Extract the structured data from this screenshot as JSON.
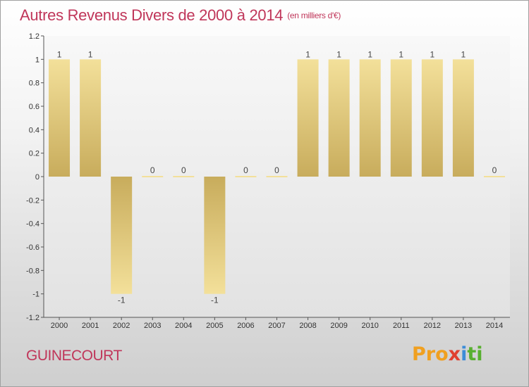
{
  "header": {
    "title": "Autres Revenus Divers de 2000 à 2014",
    "unit": "(en milliers d'€)"
  },
  "footer": {
    "commune": "GUINECOURT",
    "logo_parts": [
      "Pro",
      "x",
      "i",
      "ti"
    ]
  },
  "colors": {
    "title": "#c0365a",
    "bar_light": "#f3e09a",
    "bar_dark": "#c8ac5c",
    "logo_orange": "#f0a020",
    "logo_blue": "#3c8cd8",
    "logo_red": "#e04030",
    "logo_green": "#58b030"
  },
  "chart_data": {
    "type": "bar",
    "categories": [
      "2000",
      "2001",
      "2002",
      "2003",
      "2004",
      "2005",
      "2006",
      "2007",
      "2008",
      "2009",
      "2010",
      "2011",
      "2012",
      "2013",
      "2014"
    ],
    "values": [
      1,
      1,
      -1,
      0,
      0,
      -1,
      0,
      0,
      1,
      1,
      1,
      1,
      1,
      1,
      0
    ],
    "labels": [
      "1",
      "1",
      "-1",
      "0",
      "0",
      "-1",
      "0",
      "0",
      "1",
      "1",
      "1",
      "1",
      "1",
      "1",
      "0"
    ],
    "ylim": [
      -1.2,
      1.2
    ],
    "yticks": [
      1.2,
      1,
      0.8,
      0.6,
      0.4,
      0.2,
      0,
      -0.2,
      -0.4,
      -0.6,
      -0.8,
      -1,
      -1.2
    ],
    "ytick_labels": [
      "1.2",
      "1",
      "0.8",
      "0.6",
      "0.4",
      "0.2",
      "0",
      "-0.2",
      "-0.4",
      "-0.6",
      "-0.8",
      "-1",
      "-1.2"
    ],
    "grid": false
  }
}
